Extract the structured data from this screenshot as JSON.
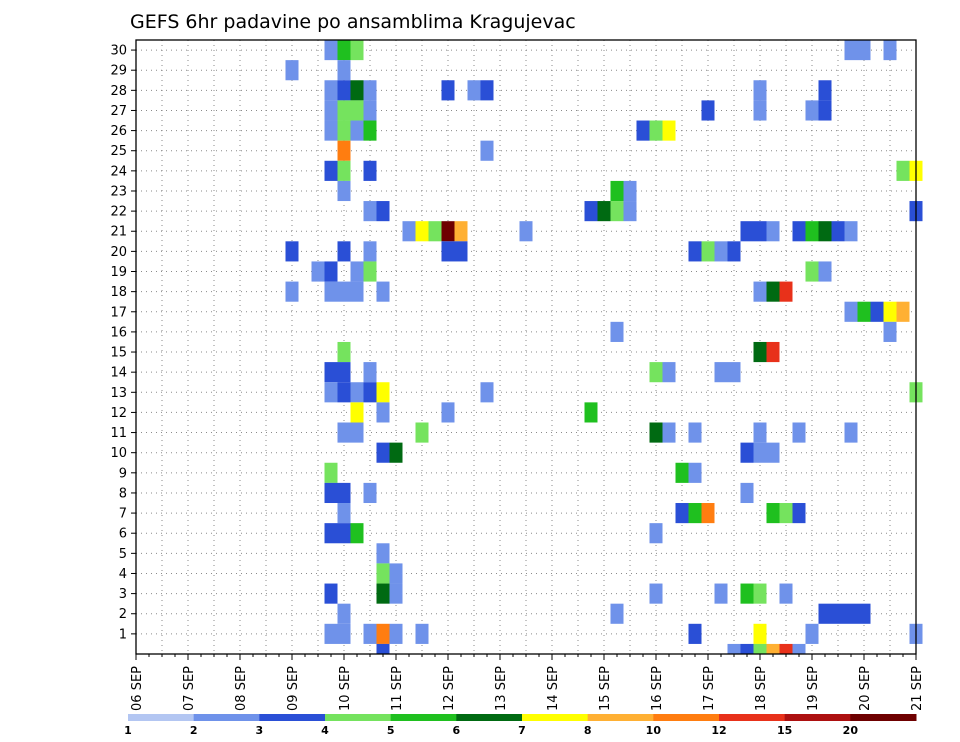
{
  "chart_data": {
    "type": "heatmap",
    "title": "GEFS 6hr padavine po ansamblima Kragujevac",
    "x_ticks": [
      "06 SEP",
      "07 SEP",
      "08 SEP",
      "09 SEP",
      "10 SEP",
      "11 SEP",
      "12 SEP",
      "13 SEP",
      "14 SEP",
      "15 SEP",
      "16 SEP",
      "17 SEP",
      "18 SEP",
      "19 SEP",
      "20 SEP",
      "21 SEP"
    ],
    "xlim": [
      "06 SEP 00",
      "21 SEP 00"
    ],
    "y_ticks": [
      "1",
      "2",
      "3",
      "4",
      "5",
      "6",
      "7",
      "8",
      "9",
      "10",
      "11",
      "12",
      "13",
      "14",
      "15",
      "16",
      "17",
      "18",
      "19",
      "20",
      "21",
      "22",
      "23",
      "24",
      "25",
      "26",
      "27",
      "28",
      "29",
      "30"
    ],
    "ylim": [
      0,
      30
    ],
    "grid": true,
    "colorbar": {
      "labels": [
        "1",
        "2",
        "3",
        "4",
        "5",
        "6",
        "7",
        "8",
        "10",
        "12",
        "15",
        "20"
      ],
      "colors": [
        "#b3c6f2",
        "#6f92ea",
        "#2a4fd6",
        "#75e35e",
        "#1fc01f",
        "#006a12",
        "#ffff00",
        "#ffb033",
        "#ff7d10",
        "#e8311a",
        "#ad1010",
        "#6e0000"
      ]
    },
    "cells": [
      [
        30,
        9.75,
        1
      ],
      [
        30,
        10,
        4
      ],
      [
        30,
        10.25,
        3
      ],
      [
        30,
        19.75,
        1
      ],
      [
        30,
        20,
        1
      ],
      [
        30,
        20.5,
        1
      ],
      [
        29,
        9.0,
        1
      ],
      [
        29,
        10,
        1
      ],
      [
        28,
        9.75,
        1
      ],
      [
        28,
        10,
        2
      ],
      [
        28,
        10.25,
        5
      ],
      [
        28,
        10.5,
        1
      ],
      [
        28,
        12,
        2
      ],
      [
        28,
        12.5,
        1
      ],
      [
        28,
        12.75,
        2
      ],
      [
        28,
        18,
        1
      ],
      [
        28,
        19.25,
        2
      ],
      [
        27,
        9.75,
        1
      ],
      [
        27,
        10,
        3
      ],
      [
        27,
        10.25,
        3
      ],
      [
        27,
        10.5,
        1
      ],
      [
        27,
        17,
        2
      ],
      [
        27,
        18,
        1
      ],
      [
        27,
        19,
        1
      ],
      [
        27,
        19.25,
        2
      ],
      [
        26,
        9.75,
        1
      ],
      [
        26,
        10,
        3
      ],
      [
        26,
        10.25,
        1
      ],
      [
        26,
        10.5,
        4
      ],
      [
        26,
        15.75,
        2
      ],
      [
        26,
        16,
        3
      ],
      [
        26,
        16.25,
        6
      ],
      [
        25,
        10,
        8
      ],
      [
        25,
        12.75,
        1
      ],
      [
        24,
        9.75,
        2
      ],
      [
        24,
        10,
        3
      ],
      [
        24,
        10.5,
        2
      ],
      [
        24,
        20.75,
        3
      ],
      [
        24,
        21,
        6
      ],
      [
        23,
        10,
        1
      ],
      [
        23,
        15.25,
        4
      ],
      [
        23,
        15.5,
        1
      ],
      [
        22,
        10.5,
        1
      ],
      [
        22,
        10.75,
        2
      ],
      [
        22,
        14.75,
        2
      ],
      [
        22,
        15,
        5
      ],
      [
        22,
        15.25,
        3
      ],
      [
        22,
        15.5,
        1
      ],
      [
        22,
        21,
        2
      ],
      [
        21,
        11.25,
        1
      ],
      [
        21,
        11.5,
        6
      ],
      [
        21,
        11.75,
        3
      ],
      [
        21,
        12,
        11
      ],
      [
        21,
        12.25,
        7
      ],
      [
        21,
        13.5,
        1
      ],
      [
        21,
        17.75,
        2
      ],
      [
        21,
        18,
        2
      ],
      [
        21,
        18.25,
        1
      ],
      [
        21,
        18.75,
        2
      ],
      [
        21,
        19,
        4
      ],
      [
        21,
        19.25,
        5
      ],
      [
        21,
        19.5,
        2
      ],
      [
        21,
        19.75,
        1
      ],
      [
        20,
        9.0,
        2
      ],
      [
        20,
        10,
        2
      ],
      [
        20,
        10.5,
        1
      ],
      [
        20,
        12,
        2
      ],
      [
        20,
        12.25,
        2
      ],
      [
        20,
        16.75,
        2
      ],
      [
        20,
        17,
        3
      ],
      [
        20,
        17.25,
        1
      ],
      [
        20,
        17.5,
        2
      ],
      [
        19,
        9.5,
        1
      ],
      [
        19,
        9.75,
        2
      ],
      [
        19,
        10.25,
        1
      ],
      [
        19,
        10.5,
        3
      ],
      [
        19,
        19,
        3
      ],
      [
        19,
        19.25,
        1
      ],
      [
        18,
        9.0,
        1
      ],
      [
        18,
        9.75,
        1
      ],
      [
        18,
        10,
        1
      ],
      [
        18,
        10.25,
        1
      ],
      [
        18,
        10.75,
        1
      ],
      [
        18,
        18,
        1
      ],
      [
        18,
        18.25,
        5
      ],
      [
        18,
        18.5,
        9
      ],
      [
        17,
        19.75,
        1
      ],
      [
        17,
        20,
        4
      ],
      [
        17,
        20.25,
        2
      ],
      [
        17,
        20.5,
        6
      ],
      [
        17,
        20.75,
        7
      ],
      [
        16,
        15.25,
        1
      ],
      [
        16,
        20.5,
        1
      ],
      [
        15,
        10,
        3
      ],
      [
        15,
        18,
        5
      ],
      [
        15,
        18.25,
        9
      ],
      [
        14,
        9.75,
        2
      ],
      [
        14,
        10,
        2
      ],
      [
        14,
        10.5,
        1
      ],
      [
        14,
        16,
        3
      ],
      [
        14,
        16.25,
        1
      ],
      [
        14,
        17.25,
        1
      ],
      [
        14,
        17.5,
        1
      ],
      [
        13,
        9.75,
        1
      ],
      [
        13,
        10,
        2
      ],
      [
        13,
        10.25,
        1
      ],
      [
        13,
        10.5,
        2
      ],
      [
        13,
        10.75,
        6
      ],
      [
        13,
        12.75,
        1
      ],
      [
        13,
        21,
        3
      ],
      [
        12,
        10.25,
        6
      ],
      [
        12,
        10.75,
        1
      ],
      [
        12,
        12,
        1
      ],
      [
        12,
        14.75,
        4
      ],
      [
        11,
        10,
        1
      ],
      [
        11,
        10.25,
        1
      ],
      [
        11,
        11.5,
        3
      ],
      [
        11,
        16,
        5
      ],
      [
        11,
        16.25,
        1
      ],
      [
        11,
        16.75,
        1
      ],
      [
        11,
        18,
        1
      ],
      [
        11,
        18.75,
        1
      ],
      [
        11,
        19.75,
        1
      ],
      [
        10,
        10.75,
        2
      ],
      [
        10,
        11,
        5
      ],
      [
        10,
        17.75,
        2
      ],
      [
        10,
        18,
        1
      ],
      [
        10,
        18.25,
        1
      ],
      [
        9,
        9.75,
        3
      ],
      [
        9,
        16.5,
        4
      ],
      [
        9,
        16.75,
        1
      ],
      [
        8,
        9.75,
        2
      ],
      [
        8,
        10,
        2
      ],
      [
        8,
        10.5,
        1
      ],
      [
        8,
        17.75,
        1
      ],
      [
        7,
        10,
        1
      ],
      [
        7,
        16.5,
        2
      ],
      [
        7,
        16.75,
        4
      ],
      [
        7,
        17,
        8
      ],
      [
        7,
        18.25,
        4
      ],
      [
        7,
        18.5,
        3
      ],
      [
        7,
        18.75,
        2
      ],
      [
        6,
        9.75,
        2
      ],
      [
        6,
        10,
        2
      ],
      [
        6,
        10.25,
        4
      ],
      [
        6,
        16,
        1
      ],
      [
        5,
        10.75,
        1
      ],
      [
        4,
        10.75,
        3
      ],
      [
        4,
        11,
        1
      ],
      [
        3,
        9.75,
        2
      ],
      [
        3,
        10.75,
        5
      ],
      [
        3,
        11,
        1
      ],
      [
        3,
        16,
        1
      ],
      [
        3,
        17.25,
        1
      ],
      [
        3,
        17.75,
        4
      ],
      [
        3,
        18,
        3
      ],
      [
        3,
        18.5,
        1
      ],
      [
        2,
        10,
        1
      ],
      [
        2,
        15.25,
        1
      ],
      [
        2,
        19.25,
        2
      ],
      [
        2,
        19.5,
        2
      ],
      [
        2,
        19.75,
        2
      ],
      [
        2,
        20,
        2
      ],
      [
        1,
        9.75,
        1
      ],
      [
        1,
        10,
        1
      ],
      [
        1,
        10.5,
        1
      ],
      [
        1,
        10.75,
        8
      ],
      [
        1,
        11,
        1
      ],
      [
        1,
        11.5,
        1
      ],
      [
        1,
        16.75,
        2
      ],
      [
        1,
        18,
        6
      ],
      [
        1,
        19,
        1
      ],
      [
        1,
        21,
        1
      ],
      [
        0,
        10.75,
        2
      ],
      [
        0,
        17.5,
        1
      ],
      [
        0,
        17.75,
        2
      ],
      [
        0,
        18,
        3
      ],
      [
        0,
        18.25,
        7
      ],
      [
        0,
        18.5,
        9
      ],
      [
        0,
        18.75,
        1
      ]
    ]
  }
}
